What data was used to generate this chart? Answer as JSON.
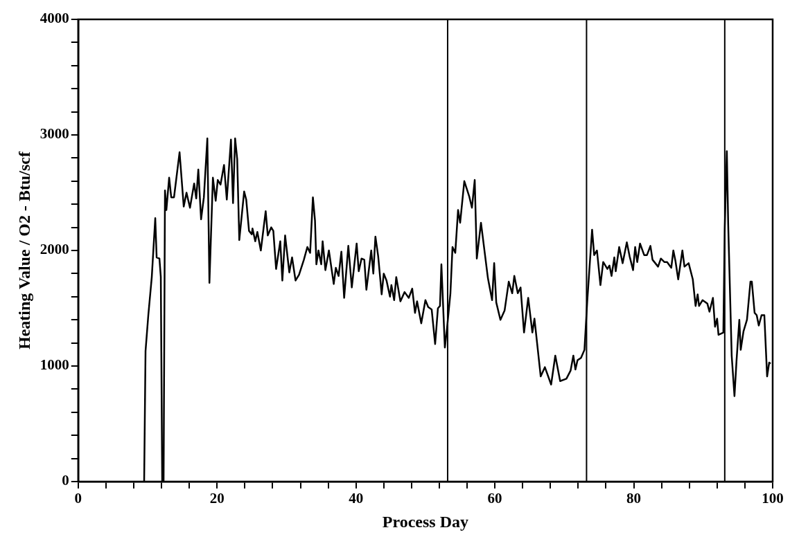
{
  "chart_data": {
    "type": "line",
    "xlabel": "Process Day",
    "ylabel": "Heating Value / O2 - Btu/scf",
    "xlim": [
      0,
      100
    ],
    "ylim": [
      0,
      4000
    ],
    "xticks": [
      0,
      {
        "value": 4,
        "label": null
      },
      {
        "value": 8,
        "label": null
      },
      {
        "value": 12,
        "label": null
      },
      {
        "value": 16,
        "label": null
      },
      20,
      {
        "value": 24,
        "label": null
      },
      {
        "value": 28,
        "label": null
      },
      {
        "value": 32,
        "label": null
      },
      {
        "value": 36,
        "label": null
      },
      40,
      {
        "value": 44,
        "label": null
      },
      {
        "value": 48,
        "label": null
      },
      {
        "value": 52,
        "label": null
      },
      {
        "value": 56,
        "label": null
      },
      60,
      {
        "value": 64,
        "label": null
      },
      {
        "value": 68,
        "label": null
      },
      {
        "value": 72,
        "label": null
      },
      {
        "value": 76,
        "label": null
      },
      80,
      {
        "value": 84,
        "label": null
      },
      {
        "value": 88,
        "label": null
      },
      {
        "value": 92,
        "label": null
      },
      {
        "value": 96,
        "label": null
      },
      100
    ],
    "yticks": [
      0,
      {
        "value": 200,
        "label": null
      },
      {
        "value": 400,
        "label": null
      },
      {
        "value": 600,
        "label": null
      },
      {
        "value": 800,
        "label": null
      },
      1000,
      {
        "value": 1200,
        "label": null
      },
      {
        "value": 1400,
        "label": null
      },
      {
        "value": 1600,
        "label": null
      },
      {
        "value": 1800,
        "label": null
      },
      2000,
      {
        "value": 2200,
        "label": null
      },
      {
        "value": 2400,
        "label": null
      },
      {
        "value": 2600,
        "label": null
      },
      {
        "value": 2800,
        "label": null
      },
      3000,
      {
        "value": 3200,
        "label": null
      },
      {
        "value": 3400,
        "label": null
      },
      {
        "value": 3600,
        "label": null
      },
      {
        "value": 3800,
        "label": null
      },
      4000
    ],
    "ref_lines": [
      {
        "axis": "x",
        "value": 53.2,
        "color": "#000000"
      },
      {
        "axis": "x",
        "value": 73.2,
        "color": "#000000"
      },
      {
        "axis": "x",
        "value": 93.1,
        "color": "#000000"
      }
    ],
    "marker": "none",
    "line_style": "solid",
    "series": [
      {
        "color": "#000000",
        "x": [
          9.5,
          9.7,
          10.1,
          10.6,
          11.1,
          11.3,
          11.7,
          11.9,
          12.1,
          12.3,
          12.5,
          12.7,
          13.1,
          13.4,
          13.8,
          14.6,
          15.2,
          15.6,
          16.1,
          16.7,
          17.0,
          17.3,
          17.7,
          18.1,
          18.6,
          18.9,
          19.4,
          19.8,
          20.1,
          20.5,
          21.0,
          21.4,
          22.0,
          22.3,
          22.6,
          22.9,
          23.2,
          23.9,
          24.2,
          24.6,
          25.0,
          25.1,
          25.5,
          25.8,
          26.3,
          27.0,
          27.3,
          27.8,
          28.1,
          28.5,
          29.1,
          29.4,
          29.8,
          30.4,
          30.8,
          31.3,
          31.8,
          32.5,
          33.0,
          33.4,
          33.8,
          34.1,
          34.3,
          34.6,
          35.0,
          35.2,
          35.6,
          36.1,
          36.8,
          37.1,
          37.5,
          37.9,
          38.3,
          38.9,
          39.4,
          40.1,
          40.4,
          40.8,
          41.2,
          41.5,
          42.2,
          42.5,
          42.8,
          43.2,
          43.7,
          44.0,
          44.4,
          44.9,
          45.1,
          45.5,
          45.8,
          46.4,
          47.0,
          47.6,
          48.1,
          48.5,
          48.8,
          49.4,
          50.0,
          50.4,
          50.9,
          51.4,
          51.8,
          52.1,
          52.3,
          52.8,
          53.1,
          53.6,
          53.9,
          54.3,
          54.7,
          55.0,
          55.6,
          56.3,
          56.7,
          57.1,
          57.4,
          58.0,
          59.0,
          59.6,
          59.9,
          60.2,
          60.8,
          61.4,
          62.0,
          62.5,
          62.8,
          63.3,
          63.7,
          64.2,
          64.8,
          65.4,
          65.7,
          66.6,
          67.2,
          68.1,
          68.7,
          69.4,
          70.3,
          70.9,
          71.3,
          71.6,
          71.9,
          72.4,
          72.9,
          73.3,
          74.0,
          74.3,
          74.7,
          75.2,
          75.6,
          76.2,
          76.5,
          76.8,
          77.2,
          77.4,
          77.9,
          78.4,
          79.0,
          79.4,
          79.9,
          80.2,
          80.5,
          80.9,
          81.5,
          81.9,
          82.4,
          82.7,
          83.5,
          83.9,
          84.4,
          84.8,
          85.4,
          85.7,
          86.0,
          86.4,
          87.0,
          87.3,
          87.9,
          88.5,
          88.9,
          89.2,
          89.4,
          89.9,
          90.6,
          90.9,
          91.4,
          91.7,
          92.0,
          92.2,
          92.9,
          93.1,
          93.4,
          93.6,
          94.1,
          94.5,
          94.8,
          95.2,
          95.4,
          95.8,
          96.3,
          96.8,
          97.0,
          97.4,
          97.7,
          98.0,
          98.4,
          98.8,
          99.2,
          99.5,
          99.7
        ],
        "values": [
          0,
          1130,
          1440,
          1770,
          2280,
          1940,
          1930,
          1770,
          0,
          0,
          2520,
          2350,
          2630,
          2460,
          2460,
          2850,
          2380,
          2500,
          2370,
          2580,
          2450,
          2700,
          2270,
          2460,
          2970,
          1720,
          2630,
          2430,
          2610,
          2570,
          2740,
          2440,
          2960,
          2410,
          2970,
          2790,
          2090,
          2510,
          2440,
          2170,
          2140,
          2190,
          2080,
          2160,
          2000,
          2340,
          2130,
          2200,
          2170,
          1840,
          2080,
          1740,
          2130,
          1810,
          1940,
          1740,
          1790,
          1920,
          2030,
          1980,
          2460,
          2260,
          1880,
          2000,
          1880,
          2080,
          1830,
          2000,
          1710,
          1850,
          1780,
          1990,
          1590,
          2040,
          1680,
          2060,
          1820,
          1930,
          1920,
          1660,
          2000,
          1800,
          2120,
          1950,
          1620,
          1800,
          1740,
          1600,
          1700,
          1570,
          1770,
          1560,
          1640,
          1590,
          1670,
          1460,
          1560,
          1370,
          1570,
          1510,
          1490,
          1190,
          1500,
          1520,
          1880,
          1160,
          1320,
          1630,
          2030,
          1980,
          2350,
          2240,
          2600,
          2470,
          2370,
          2610,
          1930,
          2240,
          1760,
          1570,
          1890,
          1550,
          1400,
          1480,
          1730,
          1630,
          1780,
          1630,
          1680,
          1290,
          1590,
          1290,
          1410,
          910,
          990,
          840,
          1090,
          870,
          890,
          960,
          1090,
          970,
          1050,
          1070,
          1140,
          1560,
          2180,
          1960,
          2000,
          1700,
          1900,
          1840,
          1870,
          1780,
          1940,
          1820,
          2030,
          1890,
          2070,
          1950,
          1830,
          2030,
          1900,
          2060,
          1960,
          1960,
          2040,
          1920,
          1860,
          1930,
          1900,
          1900,
          1850,
          2000,
          1910,
          1750,
          2000,
          1860,
          1890,
          1750,
          1520,
          1620,
          1520,
          1570,
          1540,
          1470,
          1590,
          1340,
          1410,
          1270,
          1290,
          2190,
          2860,
          2220,
          1090,
          740,
          1050,
          1400,
          1140,
          1300,
          1400,
          1730,
          1730,
          1460,
          1440,
          1350,
          1440,
          1440,
          910,
          1030,
          1020
        ]
      }
    ]
  }
}
